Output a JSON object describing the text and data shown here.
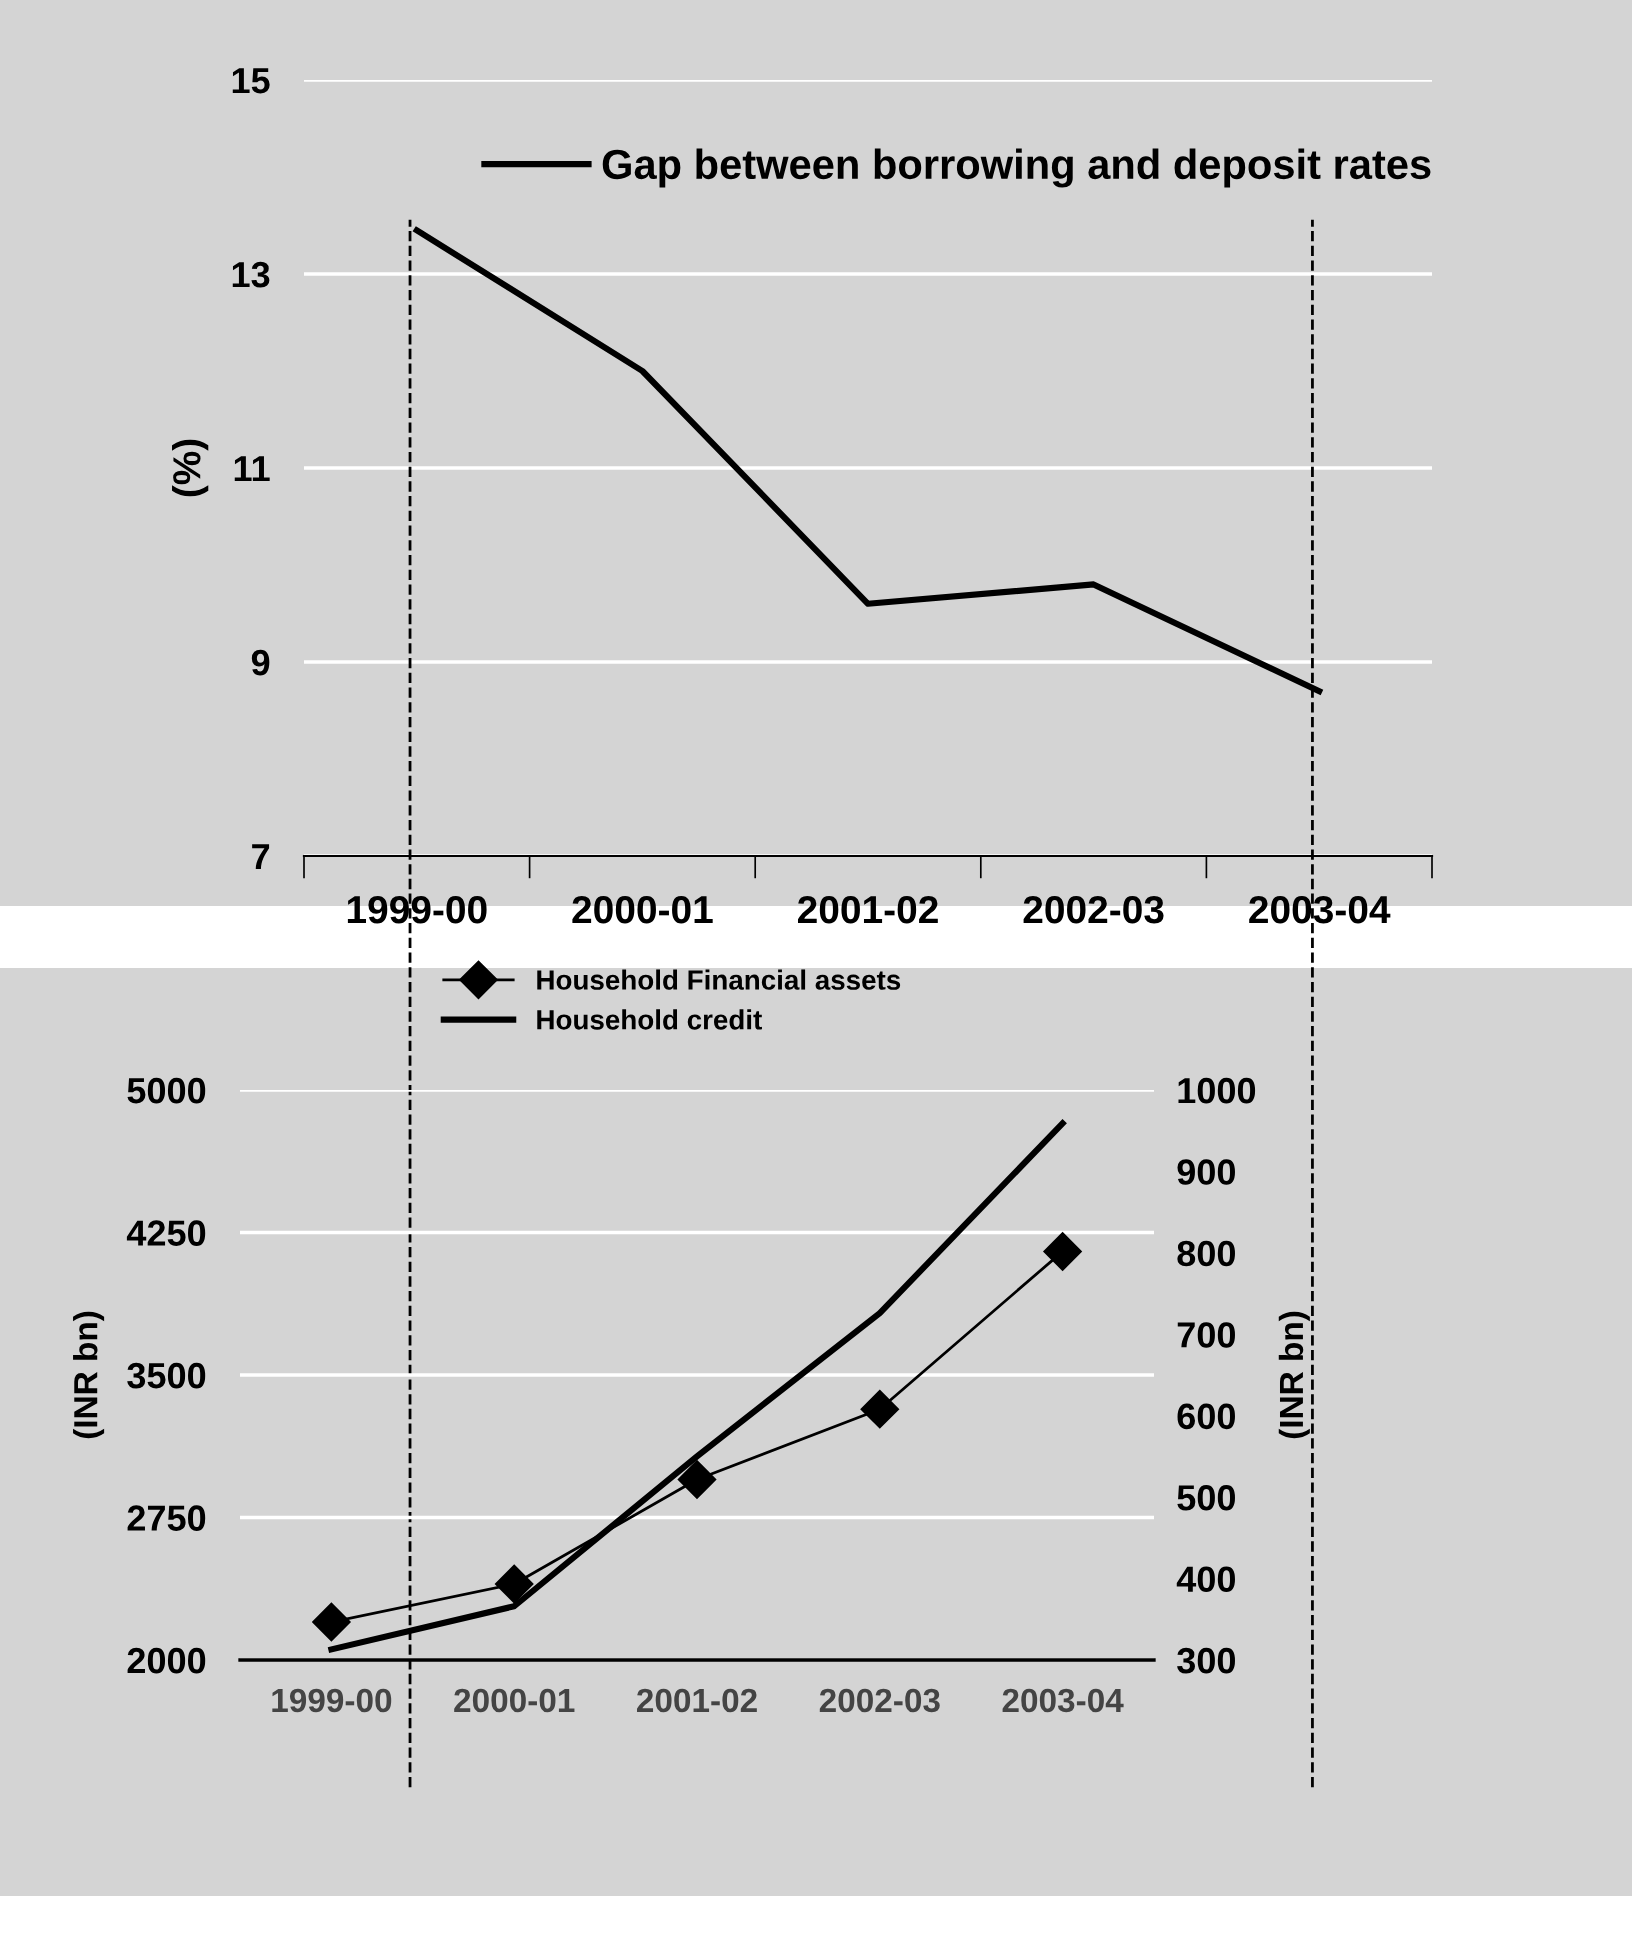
{
  "chart_data": [
    {
      "type": "line",
      "ylabel": "(%)",
      "categories": [
        "1999-00",
        "2000-01",
        "2001-02",
        "2002-03",
        "2003-04"
      ],
      "series": [
        {
          "name": "Gap between borrowing and deposit rates",
          "color": "#000000",
          "values": [
            13.45,
            12.0,
            9.6,
            9.8,
            8.7
          ]
        }
      ],
      "ylim": [
        7,
        15
      ],
      "yticks": [
        7,
        9,
        11,
        13,
        15
      ],
      "grid": "y",
      "legend": "top",
      "marker": "none",
      "line_style": "solid",
      "ref_lines": [
        {
          "axis": "x",
          "value": "1999-00",
          "color": "#000000",
          "line_style": "dashed"
        },
        {
          "axis": "x",
          "value": "2003-04",
          "color": "#000000",
          "line_style": "dashed"
        }
      ]
    },
    {
      "type": "line",
      "ylabel": "(INR bn)",
      "y2label": "(INR bn)",
      "categories": [
        "1999-00",
        "2000-01",
        "2001-02",
        "2002-03",
        "2003-04"
      ],
      "series": [
        {
          "name": "Household Financial assets",
          "color": "#000000",
          "values": [
            2200,
            2400,
            2950,
            3320,
            4150
          ],
          "marker": "diamond"
        },
        {
          "name": "Household credit",
          "color": "#000000",
          "values": [
            313,
            366,
            550,
            726,
            959
          ],
          "axis": "y2",
          "marker": "none"
        }
      ],
      "ylim": [
        2000,
        5000
      ],
      "yticks": [
        2000,
        2750,
        3500,
        4250,
        5000
      ],
      "y2lim": [
        300,
        1000
      ],
      "y2ticks": [
        300,
        400,
        500,
        600,
        700,
        800,
        900,
        1000
      ],
      "grid": "y",
      "legend": "top left",
      "line_style": "solid"
    }
  ]
}
